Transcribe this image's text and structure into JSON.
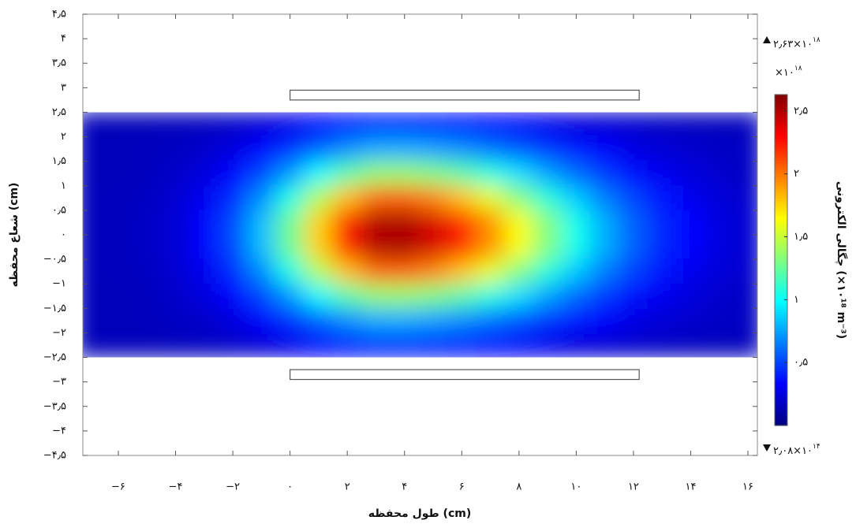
{
  "chart_data": {
    "type": "heatmap",
    "x_label": "طول محفظه (cm)",
    "y_label": "شعاع محفظه (cm)",
    "xlim": [
      -7.24,
      16.33
    ],
    "ylim": [
      -4.5,
      4.5
    ],
    "xticks": [
      {
        "value": -6,
        "label": "−۶"
      },
      {
        "value": -4,
        "label": "−۴"
      },
      {
        "value": -2,
        "label": "−۲"
      },
      {
        "value": 0,
        "label": "۰"
      },
      {
        "value": 2,
        "label": "۲"
      },
      {
        "value": 4,
        "label": "۴"
      },
      {
        "value": 6,
        "label": "۶"
      },
      {
        "value": 8,
        "label": "۸"
      },
      {
        "value": 10,
        "label": "۱۰"
      },
      {
        "value": 12,
        "label": "۱۲"
      },
      {
        "value": 14,
        "label": "۱۴"
      },
      {
        "value": 16,
        "label": "۱۶"
      }
    ],
    "yticks": [
      {
        "value": 4.5,
        "label": "۴٫۵"
      },
      {
        "value": 4,
        "label": "۴"
      },
      {
        "value": 3.5,
        "label": "۳٫۵"
      },
      {
        "value": 3,
        "label": "۳"
      },
      {
        "value": 2.5,
        "label": "۲٫۵"
      },
      {
        "value": 2,
        "label": "۲"
      },
      {
        "value": 1.5,
        "label": "۱٫۵"
      },
      {
        "value": 1,
        "label": "۱"
      },
      {
        "value": 0.5,
        "label": "۰٫۵"
      },
      {
        "value": 0,
        "label": "۰"
      },
      {
        "value": -0.5,
        "label": "−۰٫۵"
      },
      {
        "value": -1,
        "label": "−۱"
      },
      {
        "value": -1.5,
        "label": "−۱٫۵"
      },
      {
        "value": -2,
        "label": "−۲"
      },
      {
        "value": -2.5,
        "label": "−۲٫۵"
      },
      {
        "value": -3,
        "label": "−۳"
      },
      {
        "value": -3.5,
        "label": "−۳٫۵"
      },
      {
        "value": -4,
        "label": "−۴"
      },
      {
        "value": -4.5,
        "label": "−۴٫۵"
      }
    ],
    "x": [
      -7,
      -6,
      -5,
      -4,
      -3,
      -2,
      -1,
      0,
      1,
      2,
      3,
      4,
      5,
      6,
      7,
      8,
      9,
      10,
      11,
      12,
      13,
      14,
      15,
      16
    ],
    "y": [
      2.25,
      1.75,
      1.25,
      0.75,
      0.25,
      -0.25,
      -0.75,
      -1.25,
      -1.75,
      -2.25
    ],
    "values": [
      [
        0.15,
        0.15,
        0.15,
        0.16,
        0.17,
        0.19,
        0.22,
        0.27,
        0.32,
        0.37,
        0.4,
        0.41,
        0.39,
        0.37,
        0.34,
        0.31,
        0.28,
        0.24,
        0.22,
        0.2,
        0.18,
        0.17,
        0.16,
        0.16
      ],
      [
        0.15,
        0.15,
        0.16,
        0.17,
        0.19,
        0.24,
        0.33,
        0.44,
        0.57,
        0.69,
        0.77,
        0.77,
        0.74,
        0.69,
        0.62,
        0.54,
        0.46,
        0.38,
        0.32,
        0.26,
        0.22,
        0.2,
        0.18,
        0.17
      ],
      [
        0.15,
        0.15,
        0.16,
        0.19,
        0.24,
        0.33,
        0.5,
        0.72,
        0.98,
        1.21,
        1.36,
        1.37,
        1.31,
        1.21,
        1.07,
        0.91,
        0.75,
        0.6,
        0.47,
        0.37,
        0.29,
        0.24,
        0.2,
        0.18
      ],
      [
        0.15,
        0.16,
        0.17,
        0.21,
        0.29,
        0.44,
        0.69,
        1.04,
        1.44,
        1.81,
        2.03,
        2.05,
        1.96,
        1.8,
        1.58,
        1.33,
        1.08,
        0.85,
        0.65,
        0.5,
        0.38,
        0.29,
        0.23,
        0.2
      ],
      [
        0.15,
        0.16,
        0.18,
        0.22,
        0.32,
        0.51,
        0.82,
        1.26,
        1.76,
        2.22,
        2.5,
        2.52,
        2.41,
        2.2,
        1.93,
        1.63,
        1.32,
        1.03,
        0.78,
        0.58,
        0.43,
        0.33,
        0.25,
        0.21
      ],
      [
        0.15,
        0.16,
        0.18,
        0.22,
        0.32,
        0.51,
        0.82,
        1.26,
        1.76,
        2.22,
        2.5,
        2.52,
        2.41,
        2.2,
        1.93,
        1.63,
        1.32,
        1.03,
        0.78,
        0.58,
        0.43,
        0.33,
        0.25,
        0.21
      ],
      [
        0.15,
        0.16,
        0.17,
        0.21,
        0.29,
        0.44,
        0.69,
        1.04,
        1.44,
        1.81,
        2.03,
        2.05,
        1.96,
        1.8,
        1.58,
        1.33,
        1.08,
        0.85,
        0.65,
        0.5,
        0.38,
        0.29,
        0.23,
        0.2
      ],
      [
        0.15,
        0.15,
        0.16,
        0.19,
        0.24,
        0.33,
        0.5,
        0.72,
        0.98,
        1.21,
        1.36,
        1.37,
        1.31,
        1.21,
        1.07,
        0.91,
        0.75,
        0.6,
        0.47,
        0.37,
        0.29,
        0.24,
        0.2,
        0.18
      ],
      [
        0.15,
        0.15,
        0.16,
        0.17,
        0.19,
        0.24,
        0.33,
        0.44,
        0.57,
        0.69,
        0.77,
        0.77,
        0.74,
        0.69,
        0.62,
        0.54,
        0.46,
        0.38,
        0.32,
        0.26,
        0.22,
        0.2,
        0.18,
        0.17
      ],
      [
        0.15,
        0.15,
        0.15,
        0.16,
        0.17,
        0.19,
        0.22,
        0.27,
        0.32,
        0.37,
        0.4,
        0.41,
        0.39,
        0.37,
        0.34,
        0.31,
        0.28,
        0.24,
        0.22,
        0.2,
        0.18,
        0.17,
        0.16,
        0.16
      ]
    ],
    "electrodes": [
      {
        "x": [
          0,
          12.2
        ],
        "y": [
          2.75,
          2.95
        ]
      },
      {
        "x": [
          0,
          12.2
        ],
        "y": [
          -2.95,
          -2.75
        ]
      }
    ],
    "colormap": "jet",
    "colorbar": {
      "label": "چگالی الکترونی (×۱۰¹⁸ m⁻³)",
      "multiplier": {
        "mantissa": "×۱۰",
        "exponent": "۱۸"
      },
      "max_label": {
        "mantissa": "۲٫۶۳×۱۰",
        "exponent": "۱۸"
      },
      "min_label": {
        "mantissa": "۲٫۰۸×۱۰",
        "exponent": "۱۴"
      },
      "lim": [
        0.000208,
        2.63
      ],
      "ticks": [
        {
          "value": 0.5,
          "label": "۰٫۵"
        },
        {
          "value": 1,
          "label": "۱"
        },
        {
          "value": 1.5,
          "label": "۱٫۵"
        },
        {
          "value": 2,
          "label": "۲"
        },
        {
          "value": 2.5,
          "label": "۲٫۵"
        }
      ]
    }
  }
}
